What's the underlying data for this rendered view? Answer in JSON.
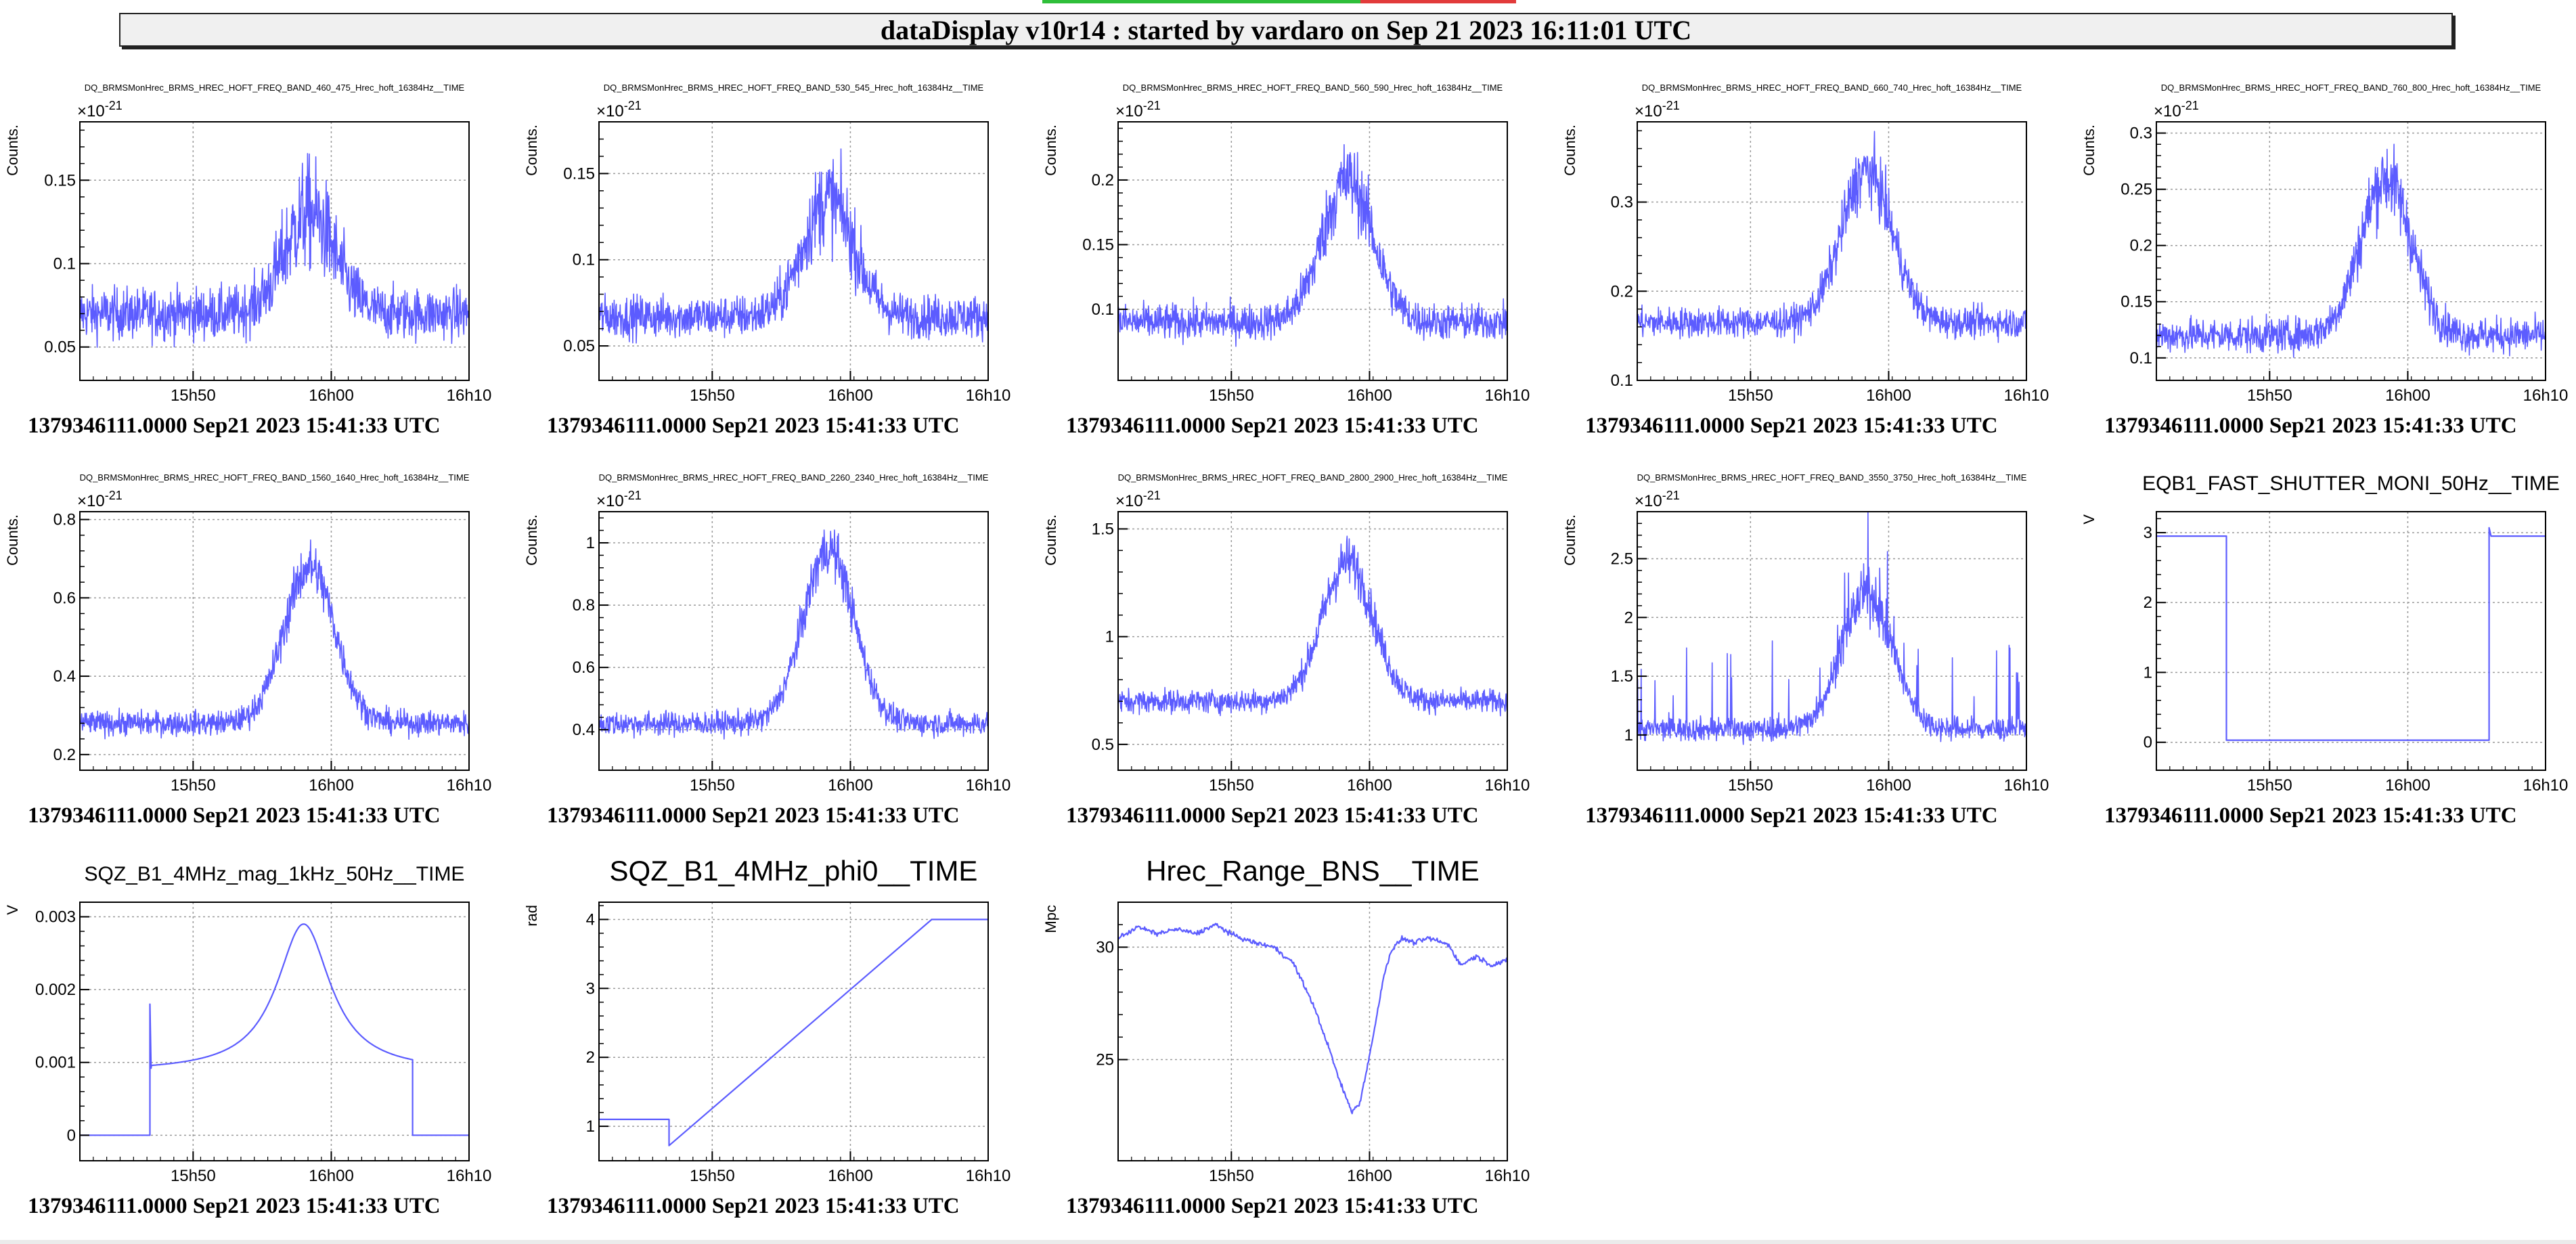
{
  "header": {
    "title": "dataDisplay v10r14 : started by vardaro on Sep 21 2023 16:11:01 UTC"
  },
  "colors": {
    "trace": "#5c5cff",
    "grid": "#9a9a9a",
    "axis": "#000000",
    "header_bg": "#f0f0f0",
    "status_ok": "#2fbf3a",
    "status_bad": "#e23b3b"
  },
  "chart_data": [
    {
      "type": "line",
      "title": "DQ_BRMSMonHrec_BRMS_HREC_HOFT_FREQ_BAND_460_475_Hrec_hoft_16384Hz__TIME",
      "ylabel": "Counts.",
      "y_exponent": "-21",
      "ylim": [
        0.03,
        0.185
      ],
      "yticks": [
        0.05,
        0.1,
        0.15
      ],
      "ytick_labels": [
        "0.05",
        "0.1",
        "0.15"
      ],
      "x_range": [
        "15h41m33s",
        "16h10m"
      ],
      "xticks": [
        "15h50",
        "16h00",
        "16h10"
      ],
      "timestamp": "1379346111.0000 Sep21 2023 15:41:33 UTC",
      "shape": "peak",
      "baseline": 0.07,
      "peak": 0.13,
      "noise": 0.02,
      "grid": true
    },
    {
      "type": "line",
      "title": "DQ_BRMSMonHrec_BRMS_HREC_HOFT_FREQ_BAND_530_545_Hrec_hoft_16384Hz__TIME",
      "ylabel": "Counts.",
      "y_exponent": "-21",
      "ylim": [
        0.03,
        0.18
      ],
      "yticks": [
        0.05,
        0.1,
        0.15
      ],
      "ytick_labels": [
        "0.05",
        "0.1",
        "0.15"
      ],
      "x_range": [
        "15h41m33s",
        "16h10m"
      ],
      "xticks": [
        "15h50",
        "16h00",
        "16h10"
      ],
      "timestamp": "1379346111.0000 Sep21 2023 15:41:33 UTC",
      "shape": "peak",
      "baseline": 0.067,
      "peak": 0.135,
      "noise": 0.016,
      "grid": true
    },
    {
      "type": "line",
      "title": "DQ_BRMSMonHrec_BRMS_HREC_HOFT_FREQ_BAND_560_590_Hrec_hoft_16384Hz__TIME",
      "ylabel": "Counts.",
      "y_exponent": "-21",
      "ylim": [
        0.045,
        0.245
      ],
      "yticks": [
        0.1,
        0.15,
        0.2
      ],
      "ytick_labels": [
        "0.1",
        "0.15",
        "0.2"
      ],
      "x_range": [
        "15h41m33s",
        "16h10m"
      ],
      "xticks": [
        "15h50",
        "16h00",
        "16h10"
      ],
      "timestamp": "1379346111.0000 Sep21 2023 15:41:33 UTC",
      "shape": "peak",
      "baseline": 0.09,
      "peak": 0.2,
      "noise": 0.018,
      "grid": true
    },
    {
      "type": "line",
      "title": "DQ_BRMSMonHrec_BRMS_HREC_HOFT_FREQ_BAND_660_740_Hrec_hoft_16384Hz__TIME",
      "ylabel": "Counts.",
      "y_exponent": "-21",
      "ylim": [
        0.1,
        0.39
      ],
      "yticks": [
        0.1,
        0.2,
        0.3
      ],
      "ytick_labels": [
        "0.1",
        "0.2",
        "0.3"
      ],
      "x_range": [
        "15h41m33s",
        "16h10m"
      ],
      "xticks": [
        "15h50",
        "16h00",
        "16h10"
      ],
      "timestamp": "1379346111.0000 Sep21 2023 15:41:33 UTC",
      "shape": "peak",
      "baseline": 0.165,
      "peak": 0.335,
      "noise": 0.022,
      "grid": true
    },
    {
      "type": "line",
      "title": "DQ_BRMSMonHrec_BRMS_HREC_HOFT_FREQ_BAND_760_800_Hrec_hoft_16384Hz__TIME",
      "ylabel": "Counts.",
      "y_exponent": "-21",
      "ylim": [
        0.08,
        0.31
      ],
      "yticks": [
        0.1,
        0.15,
        0.2,
        0.25,
        0.3
      ],
      "ytick_labels": [
        "0.1",
        "0.15",
        "0.2",
        "0.25",
        "0.3"
      ],
      "x_range": [
        "15h41m33s",
        "16h10m"
      ],
      "xticks": [
        "15h50",
        "16h00",
        "16h10"
      ],
      "timestamp": "1379346111.0000 Sep21 2023 15:41:33 UTC",
      "shape": "peak",
      "baseline": 0.12,
      "peak": 0.26,
      "noise": 0.02,
      "grid": true
    },
    {
      "type": "line",
      "title": "DQ_BRMSMonHrec_BRMS_HREC_HOFT_FREQ_BAND_1560_1640_Hrec_hoft_16384Hz__TIME",
      "ylabel": "Counts.",
      "y_exponent": "-21",
      "ylim": [
        0.16,
        0.82
      ],
      "yticks": [
        0.2,
        0.4,
        0.6,
        0.8
      ],
      "ytick_labels": [
        "0.2",
        "0.4",
        "0.6",
        "0.8"
      ],
      "x_range": [
        "15h41m33s",
        "16h10m"
      ],
      "xticks": [
        "15h50",
        "16h00",
        "16h10"
      ],
      "timestamp": "1379346111.0000 Sep21 2023 15:41:33 UTC",
      "shape": "peak",
      "baseline": 0.28,
      "peak": 0.68,
      "noise": 0.04,
      "grid": true
    },
    {
      "type": "line",
      "title": "DQ_BRMSMonHrec_BRMS_HREC_HOFT_FREQ_BAND_2260_2340_Hrec_hoft_16384Hz__TIME",
      "ylabel": "Counts.",
      "y_exponent": "-21",
      "ylim": [
        0.27,
        1.1
      ],
      "yticks": [
        0.4,
        0.6,
        0.8,
        1.0
      ],
      "ytick_labels": [
        "0.4",
        "0.6",
        "0.8",
        "1"
      ],
      "x_range": [
        "15h41m33s",
        "16h10m"
      ],
      "xticks": [
        "15h50",
        "16h00",
        "16h10"
      ],
      "timestamp": "1379346111.0000 Sep21 2023 15:41:33 UTC",
      "shape": "peak",
      "baseline": 0.42,
      "peak": 0.98,
      "noise": 0.05,
      "grid": true
    },
    {
      "type": "line",
      "title": "DQ_BRMSMonHrec_BRMS_HREC_HOFT_FREQ_BAND_2800_2900_Hrec_hoft_16384Hz__TIME",
      "ylabel": "Counts.",
      "y_exponent": "-21",
      "ylim": [
        0.38,
        1.58
      ],
      "yticks": [
        0.5,
        1.0,
        1.5
      ],
      "ytick_labels": [
        "0.5",
        "1",
        "1.5"
      ],
      "x_range": [
        "15h41m33s",
        "16h10m"
      ],
      "xticks": [
        "15h50",
        "16h00",
        "16h10"
      ],
      "timestamp": "1379346111.0000 Sep21 2023 15:41:33 UTC",
      "shape": "peak",
      "baseline": 0.7,
      "peak": 1.35,
      "noise": 0.07,
      "grid": true
    },
    {
      "type": "line",
      "title": "DQ_BRMSMonHrec_BRMS_HREC_HOFT_FREQ_BAND_3550_3750_Hrec_hoft_16384Hz__TIME",
      "ylabel": "Counts.",
      "y_exponent": "-21",
      "ylim": [
        0.7,
        2.9
      ],
      "yticks": [
        1.0,
        1.5,
        2.0,
        2.5
      ],
      "ytick_labels": [
        "1",
        "1.5",
        "2",
        "2.5"
      ],
      "x_range": [
        "15h41m33s",
        "16h10m"
      ],
      "xticks": [
        "15h50",
        "16h00",
        "16h10"
      ],
      "timestamp": "1379346111.0000 Sep21 2023 15:41:33 UTC",
      "shape": "peak",
      "baseline": 1.05,
      "peak": 2.2,
      "noise": 0.13,
      "spikes": true,
      "grid": true
    },
    {
      "type": "line",
      "title": "EQB1_FAST_SHUTTER_MONI_50Hz__TIME",
      "ylabel": "V",
      "ylim": [
        -0.4,
        3.3
      ],
      "yticks": [
        0,
        1,
        2,
        3
      ],
      "ytick_labels": [
        "0",
        "1",
        "2",
        "3"
      ],
      "x_range": [
        "15h41m33s",
        "16h10m"
      ],
      "xticks": [
        "15h50",
        "16h00",
        "16h10"
      ],
      "timestamp": "1379346111.0000 Sep21 2023 15:41:33 UTC",
      "shape": "step",
      "high": 2.95,
      "low": 0.03,
      "t_off": 0.18,
      "t_on": 0.855,
      "grid": true
    },
    {
      "type": "line",
      "title": "SQZ_B1_4MHz_mag_1kHz_50Hz__TIME",
      "ylabel": "V",
      "ylim": [
        -0.00035,
        0.0032
      ],
      "yticks": [
        0,
        0.001,
        0.002,
        0.003
      ],
      "ytick_labels": [
        "0",
        "0.001",
        "0.002",
        "0.003"
      ],
      "x_range": [
        "15h41m33s",
        "16h10m"
      ],
      "xticks": [
        "15h50",
        "16h00",
        "16h10"
      ],
      "timestamp": "1379346111.0000 Sep21 2023 15:41:33 UTC",
      "shape": "squeeze",
      "zero": 0.0,
      "base": 0.00087,
      "peak": 0.0029,
      "spike": 0.0018,
      "t_on": 0.18,
      "t_off": 0.855,
      "t_peak": 0.575,
      "grid": true
    },
    {
      "type": "line",
      "title": "SQZ_B1_4MHz_phi0__TIME",
      "ylabel": "rad",
      "ylim": [
        0.5,
        4.25
      ],
      "yticks": [
        1,
        2,
        3,
        4
      ],
      "ytick_labels": [
        "1",
        "2",
        "3",
        "4"
      ],
      "x_range": [
        "15h41m33s",
        "16h10m"
      ],
      "xticks": [
        "15h50",
        "16h00",
        "16h10"
      ],
      "timestamp": "1379346111.0000 Sep21 2023 15:41:33 UTC",
      "shape": "ramp",
      "start": 1.1,
      "dip": 0.72,
      "end": 4.0,
      "t_on": 0.18,
      "t_end": 0.855,
      "grid": true
    },
    {
      "type": "line",
      "title": "Hrec_Range_BNS__TIME",
      "ylabel": "Mpc",
      "ylim": [
        20.5,
        32.0
      ],
      "yticks": [
        25,
        30
      ],
      "ytick_labels": [
        "25",
        "30"
      ],
      "x_range": [
        "15h41m33s",
        "16h10m"
      ],
      "xticks": [
        "15h50",
        "16h00",
        "16h10"
      ],
      "timestamp": "1379346111.0000 Sep21 2023 15:41:33 UTC",
      "shape": "dip",
      "knots": [
        [
          0.0,
          30.4
        ],
        [
          0.05,
          30.9
        ],
        [
          0.1,
          30.6
        ],
        [
          0.15,
          30.8
        ],
        [
          0.2,
          30.6
        ],
        [
          0.25,
          31.0
        ],
        [
          0.3,
          30.5
        ],
        [
          0.35,
          30.2
        ],
        [
          0.4,
          30.0
        ],
        [
          0.45,
          29.3
        ],
        [
          0.5,
          27.5
        ],
        [
          0.54,
          25.6
        ],
        [
          0.57,
          24.0
        ],
        [
          0.6,
          22.7
        ],
        [
          0.62,
          23.0
        ],
        [
          0.65,
          25.5
        ],
        [
          0.68,
          28.5
        ],
        [
          0.7,
          29.8
        ],
        [
          0.73,
          30.4
        ],
        [
          0.76,
          30.2
        ],
        [
          0.8,
          30.4
        ],
        [
          0.85,
          30.1
        ],
        [
          0.88,
          29.2
        ],
        [
          0.92,
          29.6
        ],
        [
          0.96,
          29.2
        ],
        [
          1.0,
          29.4
        ]
      ],
      "noise": 0.15,
      "grid": true
    }
  ]
}
